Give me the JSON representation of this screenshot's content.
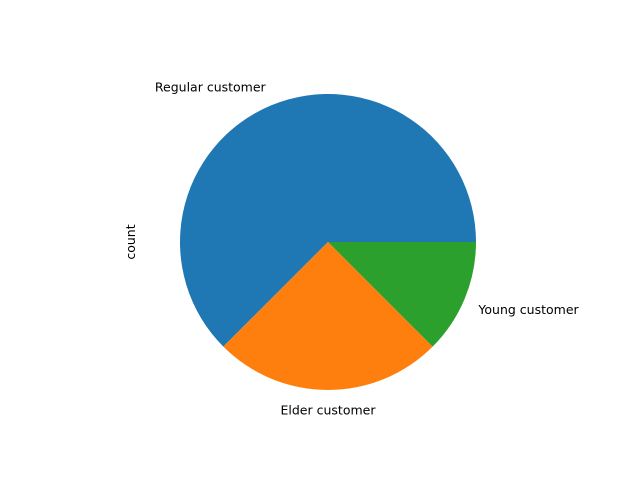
{
  "chart_data": {
    "type": "pie",
    "labels": [
      "Regular customer",
      "Elder customer",
      "Young customer"
    ],
    "values": [
      62.5,
      25,
      12.5
    ],
    "colors": [
      "#1f77b4",
      "#ff7f0e",
      "#2ca02c"
    ],
    "ylabel": "count",
    "legend": "none",
    "start_angle_deg": 0,
    "direction": "counterclockwise"
  }
}
